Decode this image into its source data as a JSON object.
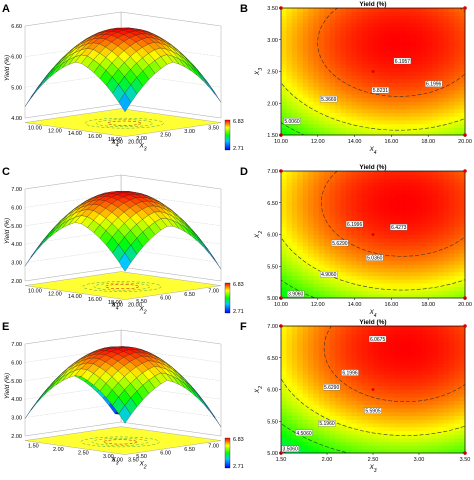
{
  "panels": [
    {
      "letter": "A"
    },
    {
      "letter": "B"
    },
    {
      "letter": "C"
    },
    {
      "letter": "D"
    },
    {
      "letter": "E"
    },
    {
      "letter": "F"
    }
  ],
  "colors": {
    "low": "#0000ff",
    "mid_low": "#00ff00",
    "mid": "#ffff00",
    "high": "#ff0000"
  },
  "chart_data": [
    {
      "panel": "A",
      "type": "surface3d",
      "zlabel": "Yield (%)",
      "x_label": "X_3",
      "y_label": "X_4",
      "x_ticks": [
        "3.50",
        "3.00",
        "2.50",
        "2.00",
        "1.50"
      ],
      "y_ticks": [
        "20.00",
        "18.00",
        "16.00",
        "14.00",
        "12.00",
        "10.00"
      ],
      "z_ticks": [
        "6.60",
        "6.00",
        "5.00",
        "4.00"
      ],
      "colorbar": {
        "max": "6.83",
        "min": "2.71"
      },
      "x_range": [
        1.5,
        3.5
      ],
      "y_range": [
        10,
        20
      ],
      "z_range": [
        2.71,
        6.83
      ],
      "optimum": {
        "x": 2.65,
        "y": 16.4,
        "z": 6.83
      }
    },
    {
      "panel": "B",
      "type": "contour",
      "title": "Yield (%)",
      "xlabel": "X_4",
      "ylabel": "X_3",
      "x_range": [
        10,
        20
      ],
      "y_range": [
        1.5,
        3.5
      ],
      "x_ticks": [
        "10.00",
        "12.00",
        "14.00",
        "16.00",
        "18.00",
        "20.00"
      ],
      "y_ticks": [
        "1.50",
        "2.00",
        "2.50",
        "3.00",
        "3.50"
      ],
      "optimum": {
        "x": 16.4,
        "y": 2.95
      },
      "design_point": {
        "x": 15.0,
        "y": 2.5
      },
      "contour_labels": [
        {
          "text": "6.1957",
          "x": 16.6,
          "y": 2.65
        },
        {
          "text": "6.1996",
          "x": 18.3,
          "y": 2.29
        },
        {
          "text": "5.8231",
          "x": 15.4,
          "y": 2.19
        },
        {
          "text": "5.3669",
          "x": 12.6,
          "y": 2.05
        },
        {
          "text": "5.0060",
          "x": 10.6,
          "y": 1.7
        }
      ]
    },
    {
      "panel": "C",
      "type": "surface3d",
      "zlabel": "Yield (%)",
      "x_label": "X_2",
      "y_label": "X_4",
      "x_ticks": [
        "7.00",
        "6.50",
        "6.00",
        "5.50",
        "5.00"
      ],
      "y_ticks": [
        "20.00",
        "18.00",
        "16.00",
        "14.00",
        "12.00",
        "10.00"
      ],
      "z_ticks": [
        "7.00",
        "6.00",
        "5.00",
        "4.00",
        "3.00",
        "2.00"
      ],
      "colorbar": {
        "max": "6.83",
        "min": "2.71"
      },
      "x_range": [
        5,
        7
      ],
      "y_range": [
        10,
        20
      ],
      "z_range": [
        2.71,
        6.83
      ],
      "optimum": {
        "x": 6.4,
        "y": 16.4,
        "z": 6.83
      }
    },
    {
      "panel": "D",
      "type": "contour",
      "title": "Yield (%)",
      "xlabel": "X_4",
      "ylabel": "X_2",
      "x_range": [
        10,
        20
      ],
      "y_range": [
        5,
        7
      ],
      "x_ticks": [
        "10.00",
        "12.00",
        "14.00",
        "16.00",
        "18.00",
        "20.00"
      ],
      "y_ticks": [
        "5.00",
        "5.50",
        "6.00",
        "6.50",
        "7.00"
      ],
      "optimum": {
        "x": 16.6,
        "y": 6.5
      },
      "design_point": {
        "x": 15.0,
        "y": 6.0
      },
      "contour_labels": [
        {
          "text": "6.4273",
          "x": 16.4,
          "y": 6.1
        },
        {
          "text": "6.1996",
          "x": 14.0,
          "y": 6.15
        },
        {
          "text": "5.6290",
          "x": 13.2,
          "y": 5.85
        },
        {
          "text": "5.0360",
          "x": 15.1,
          "y": 5.62
        },
        {
          "text": "4.9060",
          "x": 12.6,
          "y": 5.36
        },
        {
          "text": "3.9060",
          "x": 10.8,
          "y": 5.05
        }
      ]
    },
    {
      "panel": "E",
      "type": "surface3d",
      "zlabel": "Yield (%)",
      "x_label": "X_2",
      "y_label": "X_3",
      "x_ticks": [
        "7.00",
        "6.50",
        "6.00",
        "5.50",
        "5.00"
      ],
      "y_ticks": [
        "3.50",
        "3.00",
        "2.50",
        "2.00",
        "1.50"
      ],
      "z_ticks": [
        "7.00",
        "6.00",
        "5.00",
        "4.00",
        "3.00",
        "2.00"
      ],
      "colorbar": {
        "max": "6.83",
        "min": "2.71"
      },
      "x_range": [
        5,
        7
      ],
      "y_range": [
        1.5,
        3.5
      ],
      "z_range": [
        2.71,
        6.83
      ],
      "optimum": {
        "x": 6.6,
        "y": 2.8,
        "z": 6.83
      }
    },
    {
      "panel": "F",
      "type": "contour",
      "title": "Yield (%)",
      "xlabel": "X_3",
      "ylabel": "X_2",
      "x_range": [
        1.5,
        3.5
      ],
      "y_range": [
        5,
        7
      ],
      "x_ticks": [
        "1.50",
        "2.00",
        "2.50",
        "3.00",
        "3.50"
      ],
      "y_ticks": [
        "5.00",
        "5.50",
        "6.00",
        "6.50",
        "7.00"
      ],
      "optimum": {
        "x": 2.85,
        "y": 6.65
      },
      "design_point": {
        "x": 2.5,
        "y": 6.0
      },
      "contour_labels": [
        {
          "text": "6.0675",
          "x": 2.55,
          "y": 6.78
        },
        {
          "text": "6.1996",
          "x": 2.25,
          "y": 6.25
        },
        {
          "text": "5.6290",
          "x": 2.05,
          "y": 6.02
        },
        {
          "text": "5.5905",
          "x": 2.5,
          "y": 5.65
        },
        {
          "text": "5.1960",
          "x": 2.0,
          "y": 5.45
        },
        {
          "text": "4.5060",
          "x": 1.75,
          "y": 5.3
        },
        {
          "text": "3.5060",
          "x": 1.6,
          "y": 5.05
        }
      ]
    }
  ]
}
